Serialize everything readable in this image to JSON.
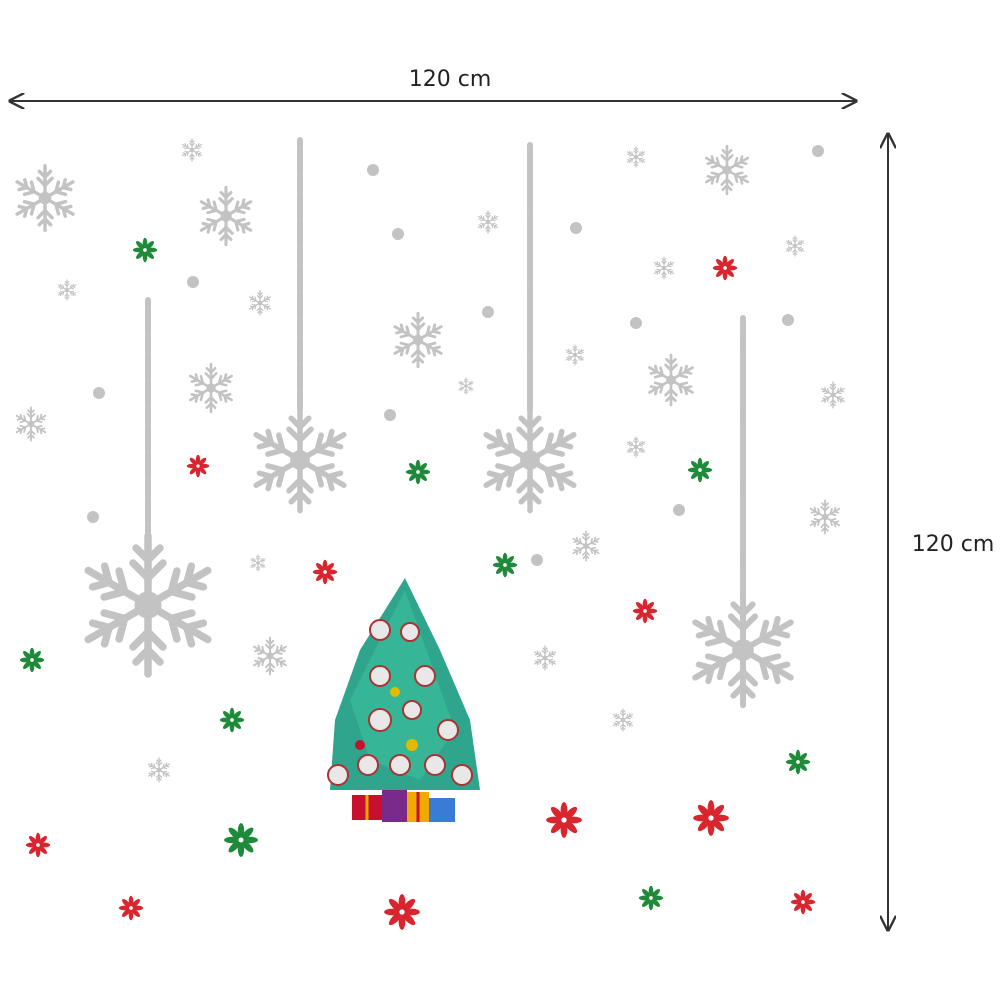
{
  "dimensions": {
    "width": "120 cm",
    "height": "120 cm"
  }
}
